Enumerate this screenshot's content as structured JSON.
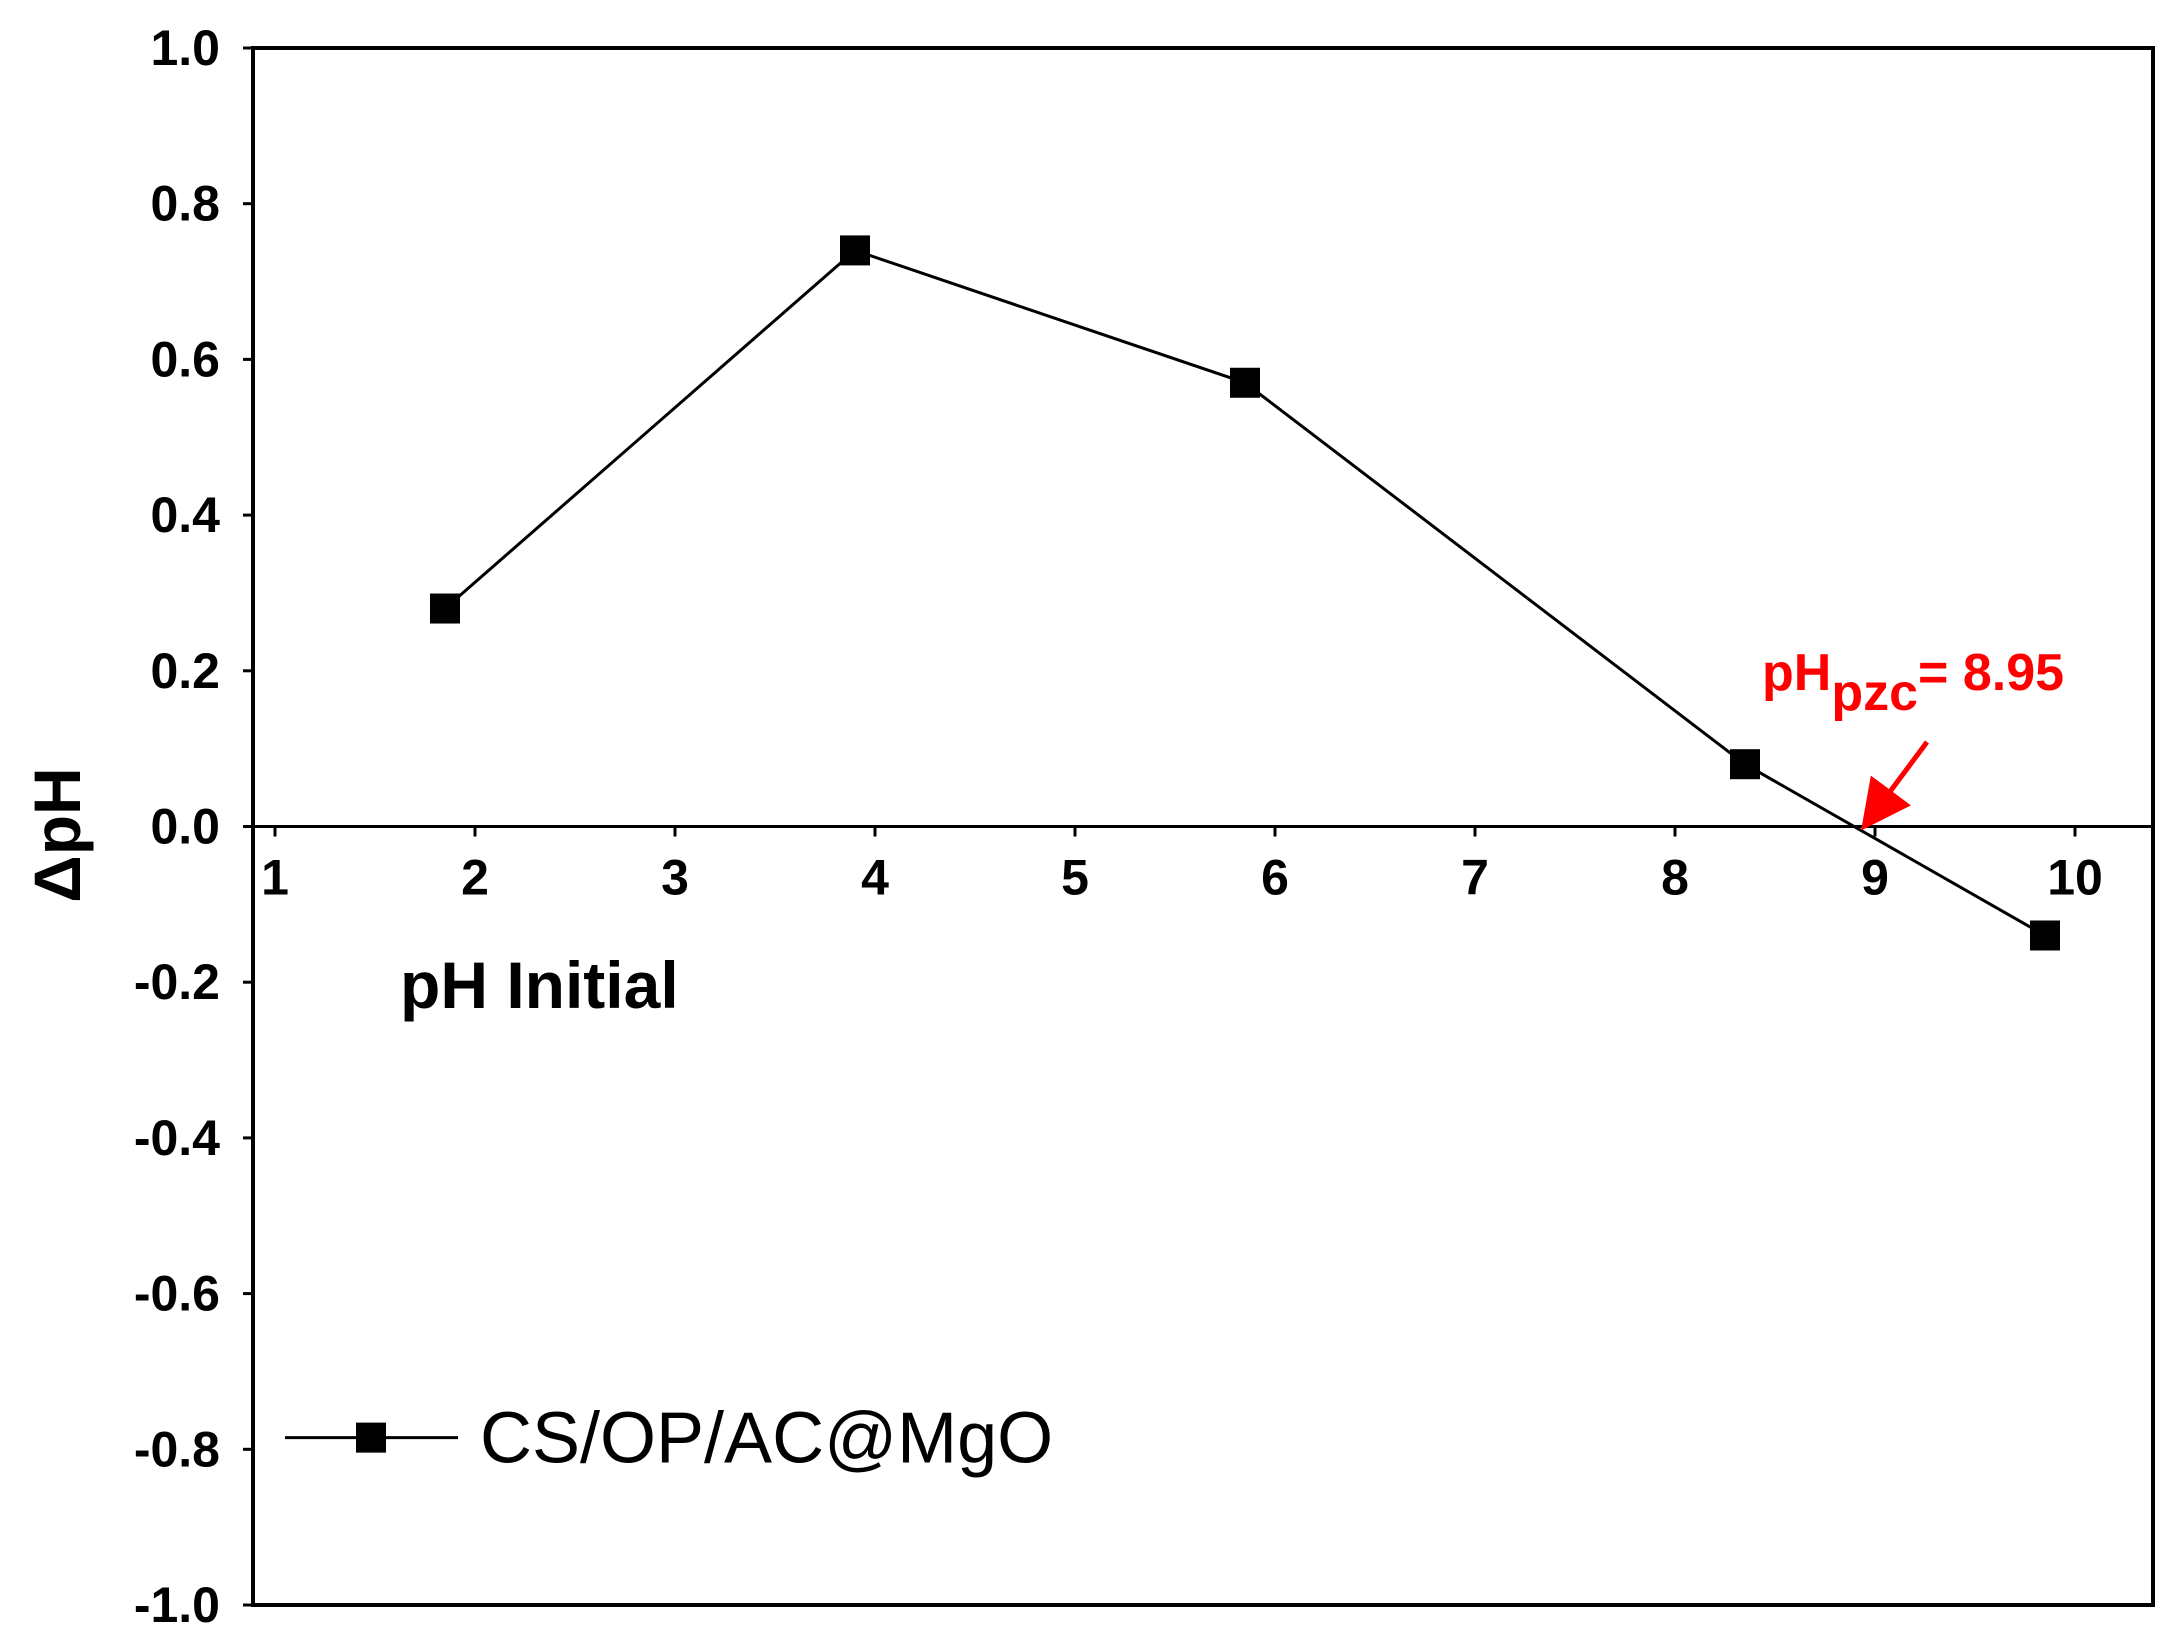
{
  "chart_data": {
    "type": "line",
    "title": "",
    "xlabel": "pH Initial",
    "ylabel": "ΔpH",
    "xlim": [
      1,
      10.3
    ],
    "ylim": [
      -1.0,
      1.0
    ],
    "x_ticks": [
      "1",
      "2",
      "3",
      "4",
      "5",
      "6",
      "7",
      "8",
      "9",
      "10"
    ],
    "y_ticks": [
      "1.0",
      "0.8",
      "0.6",
      "0.4",
      "0.2",
      "0.0",
      "-0.2",
      "-0.4",
      "-0.6",
      "-0.8",
      "-1.0"
    ],
    "grid": false,
    "legend_position": "bottom-left",
    "series": [
      {
        "name": "CS/OP/AC@MgO",
        "color": "#000000",
        "marker": "square",
        "x": [
          1.85,
          3.9,
          5.85,
          8.35,
          9.85
        ],
        "y": [
          0.28,
          0.74,
          0.57,
          0.08,
          -0.14
        ]
      }
    ],
    "annotations": [
      {
        "text_main": "pH",
        "text_sub": "pzc",
        "text_tail": "= 8.95",
        "color": "#ff0000",
        "points_to": [
          8.95,
          0.0
        ]
      }
    ]
  }
}
